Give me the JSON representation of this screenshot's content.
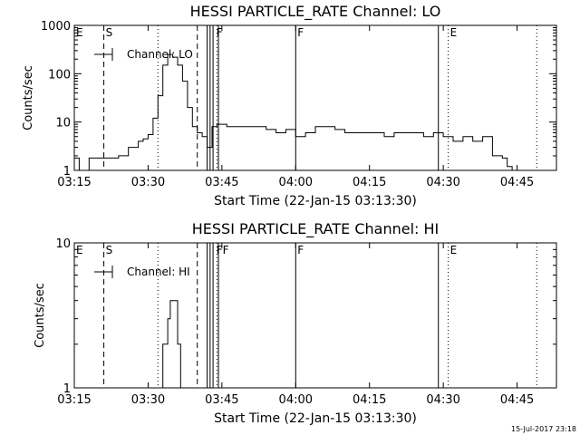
{
  "chart_data": [
    {
      "type": "line",
      "title": "HESSI PARTICLE_RATE Channel: LO",
      "xlabel": "Start Time (22-Jan-15 03:13:30)",
      "ylabel": "Counts/sec",
      "xlim": [
        "03:15",
        "04:53"
      ],
      "ylim": [
        1,
        1000
      ],
      "yscale": "log",
      "x_ticks": [
        "03:15",
        "03:30",
        "03:45",
        "04:00",
        "04:15",
        "04:30",
        "04:45"
      ],
      "y_ticks": [
        "1",
        "10",
        "100",
        "1000"
      ],
      "legend": "Channel: LO",
      "legend_position": "top-left",
      "series": [
        {
          "name": "Channel: LO",
          "x": [
            "03:15",
            "03:16",
            "03:18",
            "03:20",
            "03:22",
            "03:24",
            "03:26",
            "03:28",
            "03:29",
            "03:30",
            "03:31",
            "03:32",
            "03:33",
            "03:34",
            "03:35",
            "03:36",
            "03:37",
            "03:38",
            "03:39",
            "03:40",
            "03:41",
            "03:42",
            "03:43",
            "03:44",
            "03:46",
            "03:48",
            "03:50",
            "03:52",
            "03:54",
            "03:56",
            "03:58",
            "04:00",
            "04:02",
            "04:04",
            "04:06",
            "04:08",
            "04:10",
            "04:12",
            "04:14",
            "04:16",
            "04:18",
            "04:20",
            "04:22",
            "04:24",
            "04:26",
            "04:28",
            "04:30",
            "04:32",
            "04:34",
            "04:36",
            "04:38",
            "04:40",
            "04:42",
            "04:43",
            "04:44"
          ],
          "y": [
            1.8,
            1.0,
            1.8,
            1.8,
            1.8,
            2.0,
            3.0,
            4.0,
            4.5,
            5.5,
            12,
            35,
            150,
            250,
            220,
            150,
            70,
            20,
            8,
            6,
            5,
            3,
            8,
            9,
            8,
            8,
            8,
            8,
            7,
            6,
            7,
            5,
            6,
            8,
            8,
            7,
            6,
            6,
            6,
            6,
            5,
            6,
            6,
            6,
            5,
            6,
            5,
            4,
            5,
            4,
            5,
            2,
            1.8,
            1.2,
            1.0
          ]
        }
      ],
      "annotations": {
        "labels": [
          {
            "text": "E",
            "x": "03:15"
          },
          {
            "text": "S",
            "x": "03:21"
          },
          {
            "text": "F",
            "x": "03:43.5"
          },
          {
            "text": "F",
            "x": "04:00"
          },
          {
            "text": "E",
            "x": "04:31"
          }
        ],
        "solid_lines": [
          "03:42",
          "03:42.6",
          "03:43.2",
          "03:44.3",
          "04:00",
          "04:29"
        ],
        "dashed_lines": [
          "03:21",
          "03:40"
        ],
        "dotted_lines": [
          "03:32",
          "03:44",
          "04:31",
          "04:49"
        ]
      }
    },
    {
      "type": "line",
      "title": "HESSI PARTICLE_RATE Channel: HI",
      "xlabel": "Start Time (22-Jan-15 03:13:30)",
      "ylabel": "Counts/sec",
      "xlim": [
        "03:15",
        "04:53"
      ],
      "ylim": [
        1,
        10
      ],
      "yscale": "log",
      "x_ticks": [
        "03:15",
        "03:30",
        "03:45",
        "04:00",
        "04:15",
        "04:30",
        "04:45"
      ],
      "y_ticks": [
        "1",
        "10"
      ],
      "legend": "Channel: HI",
      "legend_position": "top-left",
      "series": [
        {
          "name": "Channel: HI",
          "x": [
            "03:32.0",
            "03:33.0",
            "03:33.5",
            "03:34.0",
            "03:34.5",
            "03:35.3",
            "03:36.0",
            "03:36.6"
          ],
          "y": [
            1.0,
            2.0,
            2.0,
            3.0,
            4.0,
            4.0,
            2.0,
            1.0
          ]
        }
      ],
      "annotations": {
        "labels": [
          {
            "text": "E",
            "x": "03:15"
          },
          {
            "text": "S",
            "x": "03:21"
          },
          {
            "text": "FF",
            "x": "03:43.5"
          },
          {
            "text": "F",
            "x": "04:00"
          },
          {
            "text": "E",
            "x": "04:31"
          }
        ],
        "solid_lines": [
          "03:42",
          "03:42.6",
          "03:43.2",
          "03:44.3",
          "04:00",
          "04:29"
        ],
        "dashed_lines": [
          "03:21",
          "03:40"
        ],
        "dotted_lines": [
          "03:32",
          "03:44",
          "04:31",
          "04:49"
        ]
      }
    }
  ],
  "footer_timestamp": "15-Jul-2017 23:18"
}
